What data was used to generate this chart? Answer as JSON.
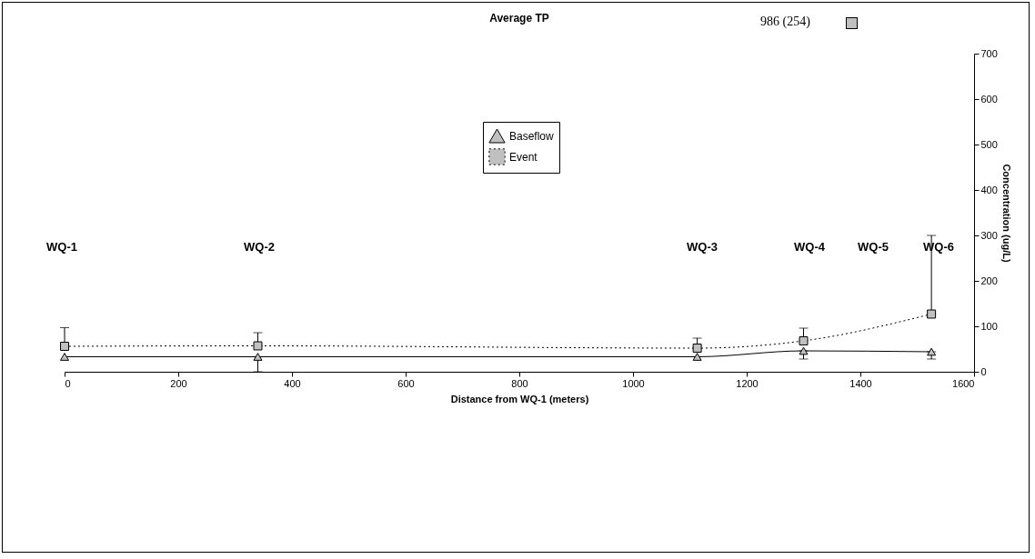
{
  "chart_data": {
    "type": "line",
    "title": "Average TP",
    "xlabel": "Distance from WQ-1 (meters)",
    "ylabel": "Concentration (ug/L)",
    "x": [
      0,
      340,
      1113,
      1300,
      1525
    ],
    "series": [
      {
        "name": "Baseflow",
        "color": "#000000",
        "values": [
          33,
          33,
          33,
          46,
          44
        ],
        "marker": "triangle",
        "line_style": "solid",
        "errors": [
          null,
          [
            0,
            33
          ],
          null,
          [
            28,
            46
          ],
          [
            28,
            44
          ]
        ]
      },
      {
        "name": "Event",
        "color": "#000000",
        "values": [
          56,
          57,
          52,
          68,
          127
        ],
        "marker": "square",
        "line_style": "dotted",
        "errors": [
          [
            56,
            97
          ],
          [
            57,
            86
          ],
          [
            52,
            74
          ],
          [
            68,
            96
          ],
          [
            127,
            300
          ]
        ]
      }
    ],
    "xlim": [
      0,
      1600
    ],
    "xticks": [
      0,
      200,
      400,
      600,
      800,
      1000,
      1200,
      1400,
      1600
    ],
    "ylim": [
      0,
      700
    ],
    "yticks": [
      0,
      100,
      200,
      300,
      400,
      500,
      600,
      700
    ],
    "grid": false,
    "legend": "top",
    "annotations": [
      "WQ-1",
      "WQ-2",
      "WQ-3",
      "WQ-4",
      "WQ-5",
      "WQ-6",
      "986 (254)"
    ]
  }
}
